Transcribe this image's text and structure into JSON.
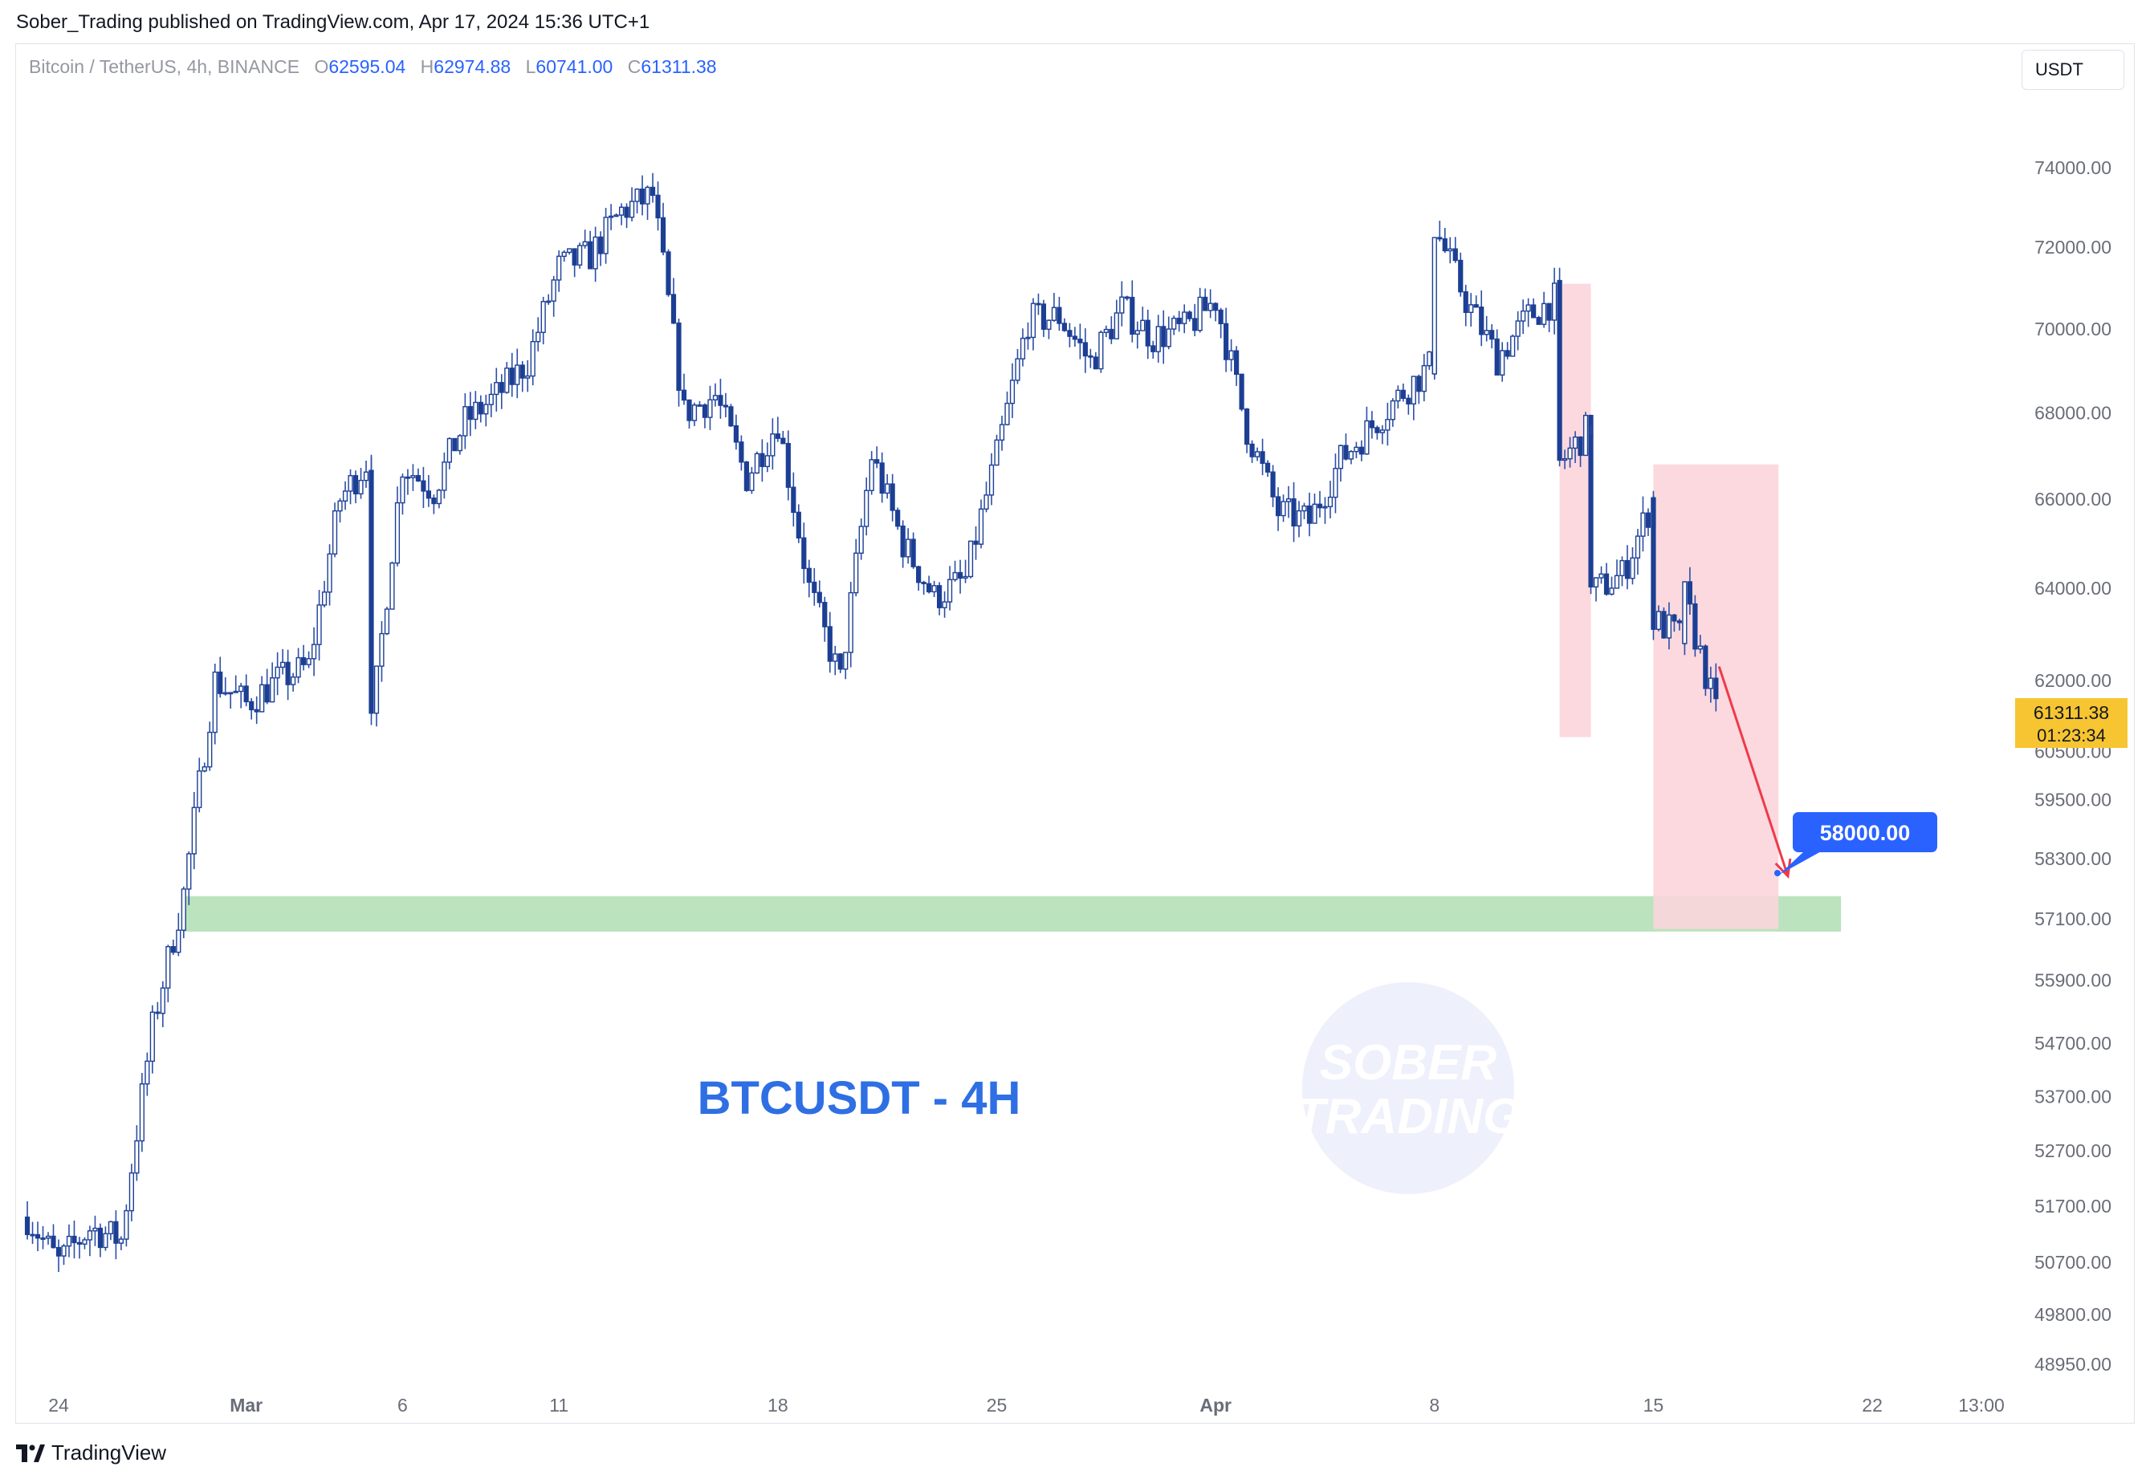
{
  "header": {
    "published": "Sober_Trading published on TradingView.com, Apr 17, 2024 15:36 UTC+1"
  },
  "legend": {
    "symbol": "Bitcoin / TetherUS, 4h, BINANCE",
    "o_label": "O",
    "o_value": "62595.04",
    "h_label": "H",
    "h_value": "62974.88",
    "l_label": "L",
    "l_value": "60741.00",
    "c_label": "C",
    "c_value": "61311.38"
  },
  "currency_button": "USDT",
  "footer": {
    "brand": "TradingView"
  },
  "watermark": {
    "line1": "SOBER",
    "line2": "TRADING"
  },
  "colors": {
    "candle": "#1c3f94",
    "wick": "#2a4ea8",
    "zone_green": "#b7e1b9",
    "zone_red": "#fbd5da",
    "arrow": "#f0394a",
    "price_tag": "#f7c531",
    "target_label": "#2962ff"
  },
  "chart_data": {
    "type": "candlestick",
    "title": "BTCUSDT - 4H",
    "symbol": "Bitcoin / TetherUS",
    "timeframe": "4h",
    "exchange": "BINANCE",
    "x_ticks": [
      "24",
      "Mar",
      "6",
      "11",
      "18",
      "25",
      "Apr",
      "8",
      "15",
      "22",
      "13:00"
    ],
    "y_ticks": [
      "74000.00",
      "72000.00",
      "70000.00",
      "68000.00",
      "66000.00",
      "64000.00",
      "62000.00",
      "60500.00",
      "59500.00",
      "58300.00",
      "57100.00",
      "55900.00",
      "54700.00",
      "53700.00",
      "52700.00",
      "51700.00",
      "50700.00",
      "49800.00",
      "48950.00"
    ],
    "y_scale": "log",
    "last_price": "61311.38",
    "countdown": "01:23:34",
    "target_label": "58000.00",
    "path": [
      [
        "2024-02-23",
        51500
      ],
      [
        "2024-02-24",
        50700
      ],
      [
        "2024-02-25",
        51300
      ],
      [
        "2024-02-26",
        51100
      ],
      [
        "2024-02-27",
        55000
      ],
      [
        "2024-02-28",
        57600
      ],
      [
        "2024-02-29",
        62000
      ],
      [
        "2024-03-01",
        61500
      ],
      [
        "2024-03-02",
        62000
      ],
      [
        "2024-03-03",
        62300
      ],
      [
        "2024-03-04",
        66000
      ],
      [
        "2024-03-05",
        67000
      ],
      [
        "2024-03-05",
        61000
      ],
      [
        "2024-03-06",
        66800
      ],
      [
        "2024-03-07",
        66200
      ],
      [
        "2024-03-08",
        67800
      ],
      [
        "2024-03-09",
        68400
      ],
      [
        "2024-03-10",
        69200
      ],
      [
        "2024-03-11",
        71500
      ],
      [
        "2024-03-12",
        71800
      ],
      [
        "2024-03-13",
        72900
      ],
      [
        "2024-03-14",
        73300
      ],
      [
        "2024-03-15",
        68000
      ],
      [
        "2024-03-16",
        68400
      ],
      [
        "2024-03-17",
        66500
      ],
      [
        "2024-03-18",
        67800
      ],
      [
        "2024-03-19",
        64000
      ],
      [
        "2024-03-20",
        62000
      ],
      [
        "2024-03-21",
        67000
      ],
      [
        "2024-03-22",
        65000
      ],
      [
        "2024-03-23",
        63800
      ],
      [
        "2024-03-24",
        64200
      ],
      [
        "2024-03-25",
        67000
      ],
      [
        "2024-03-26",
        70200
      ],
      [
        "2024-03-27",
        70300
      ],
      [
        "2024-03-28",
        69200
      ],
      [
        "2024-03-29",
        70500
      ],
      [
        "2024-03-30",
        69800
      ],
      [
        "2024-03-31",
        70000
      ],
      [
        "2024-04-01",
        70700
      ],
      [
        "2024-04-02",
        67600
      ],
      [
        "2024-04-03",
        65700
      ],
      [
        "2024-04-04",
        65500
      ],
      [
        "2024-04-05",
        66900
      ],
      [
        "2024-04-06",
        67700
      ],
      [
        "2024-04-07",
        68500
      ],
      [
        "2024-04-08",
        69200
      ],
      [
        "2024-04-08",
        72500
      ],
      [
        "2024-04-09",
        70700
      ],
      [
        "2024-04-10",
        69300
      ],
      [
        "2024-04-11",
        70300
      ],
      [
        "2024-04-12",
        70800
      ],
      [
        "2024-04-12",
        66800
      ],
      [
        "2024-04-13",
        67700
      ],
      [
        "2024-04-13",
        63900
      ],
      [
        "2024-04-14",
        64300
      ],
      [
        "2024-04-15",
        66000
      ],
      [
        "2024-04-15",
        63300
      ],
      [
        "2024-04-16",
        62900
      ],
      [
        "2024-04-16",
        63800
      ],
      [
        "2024-04-17",
        61311
      ]
    ],
    "zones": [
      {
        "type": "support",
        "from": 56850,
        "to": 57550,
        "start": "2024-02-28",
        "end": "2024-04-21"
      },
      {
        "type": "range",
        "from": 60800,
        "to": 71100,
        "start": "2024-04-12",
        "end": "2024-04-13"
      },
      {
        "type": "range",
        "from": 56900,
        "to": 66800,
        "start": "2024-04-15",
        "end": "2024-04-19"
      }
    ],
    "projection": {
      "from_date": "2024-04-17",
      "from_price": 62300,
      "to_date": "2024-04-19",
      "to_price": 57950
    }
  }
}
